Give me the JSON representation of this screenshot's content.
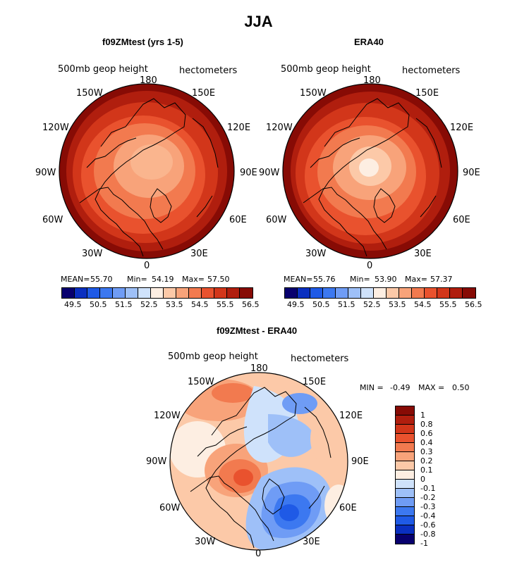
{
  "title": "JJA",
  "panels": [
    {
      "title": "f09ZMtest (yrs 1-5)",
      "var_label": "500mb geop height",
      "units": "hectometers",
      "lon_labels": [
        "180",
        "150W",
        "150E",
        "120W",
        "120E",
        "90W",
        "90E",
        "60W",
        "60E",
        "30W",
        "30E",
        "0"
      ],
      "stats": {
        "mean_label": "MEAN=",
        "mean": "55.70",
        "min_label": "Min=",
        "min": "54.19",
        "max_label": "Max=",
        "max": "57.50"
      },
      "colorbar_ticks": [
        "49.5",
        "50.5",
        "51.5",
        "52.5",
        "53.5",
        "54.5",
        "55.5",
        "56.5"
      ]
    },
    {
      "title": "ERA40",
      "var_label": "500mb geop height",
      "units": "hectometers",
      "lon_labels": [
        "180",
        "150W",
        "150E",
        "120W",
        "120E",
        "90W",
        "90E",
        "60W",
        "60E",
        "30W",
        "30E",
        "0"
      ],
      "stats": {
        "mean_label": "MEAN=",
        "mean": "55.76",
        "min_label": "Min=",
        "min": "53.90",
        "max_label": "Max=",
        "max": "57.37"
      },
      "colorbar_ticks": [
        "49.5",
        "50.5",
        "51.5",
        "52.5",
        "53.5",
        "54.5",
        "55.5",
        "56.5"
      ]
    },
    {
      "title": "f09ZMtest - ERA40",
      "var_label": "500mb geop height",
      "units": "hectometers",
      "lon_labels": [
        "180",
        "150W",
        "150E",
        "120W",
        "120E",
        "90W",
        "90E",
        "60W",
        "60E",
        "30W",
        "30E",
        "0"
      ],
      "stats": {
        "min_label": "MIN =",
        "min": "-0.49",
        "max_label": "MAX =",
        "max": "0.50"
      },
      "colorbar_ticks": [
        "1",
        "0.8",
        "0.6",
        "0.4",
        "0.3",
        "0.2",
        "0.1",
        "0",
        "-0.1",
        "-0.2",
        "-0.3",
        "-0.4",
        "-0.6",
        "-0.8",
        "-1"
      ]
    }
  ],
  "colors": {
    "abs_scale": [
      "#08006e",
      "#0a2fc0",
      "#1f5ae6",
      "#3c78f0",
      "#6f9cf5",
      "#9ec0f8",
      "#cfe2fb",
      "#fdeee2",
      "#fcc9a8",
      "#f8a37a",
      "#f27a4f",
      "#e9522e",
      "#d2361a",
      "#b01e0e",
      "#870b05"
    ],
    "diff_scale": [
      "#870b05",
      "#b01e0e",
      "#d2361a",
      "#e9522e",
      "#f27a4f",
      "#f8a37a",
      "#fcc9a8",
      "#fdeee2",
      "#cfe2fb",
      "#9ec0f8",
      "#6f9cf5",
      "#3c78f0",
      "#1f5ae6",
      "#0a2fc0",
      "#08006e"
    ]
  }
}
